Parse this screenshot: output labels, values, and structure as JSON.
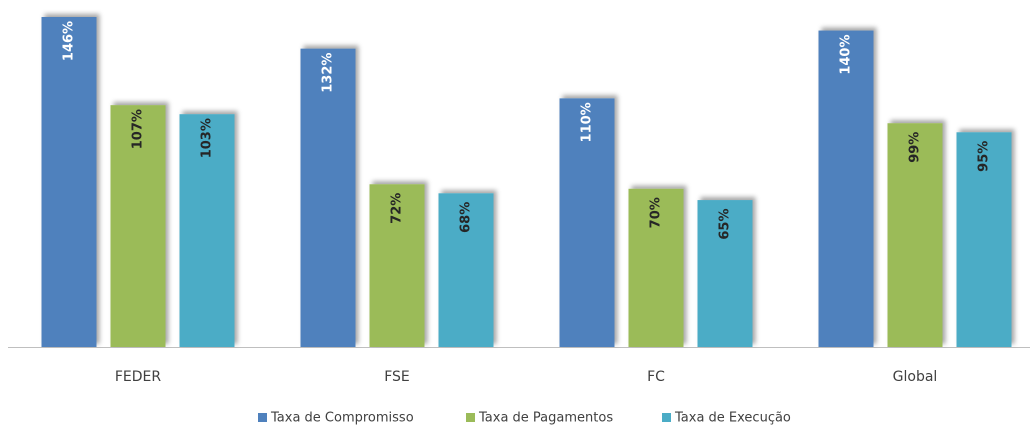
{
  "chart_data": {
    "type": "bar",
    "categories": [
      "FEDER",
      "FSE",
      "FC",
      "Global"
    ],
    "series": [
      {
        "name": "Taxa de Compromisso",
        "color": "#4f81bd",
        "values": [
          146,
          132,
          110,
          140
        ],
        "value_labels": [
          "146%",
          "132%",
          "110%",
          "140%"
        ]
      },
      {
        "name": "Taxa de Pagamentos",
        "color": "#9bbb59",
        "values": [
          107,
          72,
          70,
          99
        ],
        "value_labels": [
          "107%",
          "72%",
          "70%",
          "99%"
        ]
      },
      {
        "name": "Taxa de Execução",
        "color": "#4bacc6",
        "values": [
          103,
          68,
          65,
          95
        ],
        "value_labels": [
          "103%",
          "68%",
          "65%",
          "95%"
        ]
      }
    ],
    "legend": "bottom"
  }
}
